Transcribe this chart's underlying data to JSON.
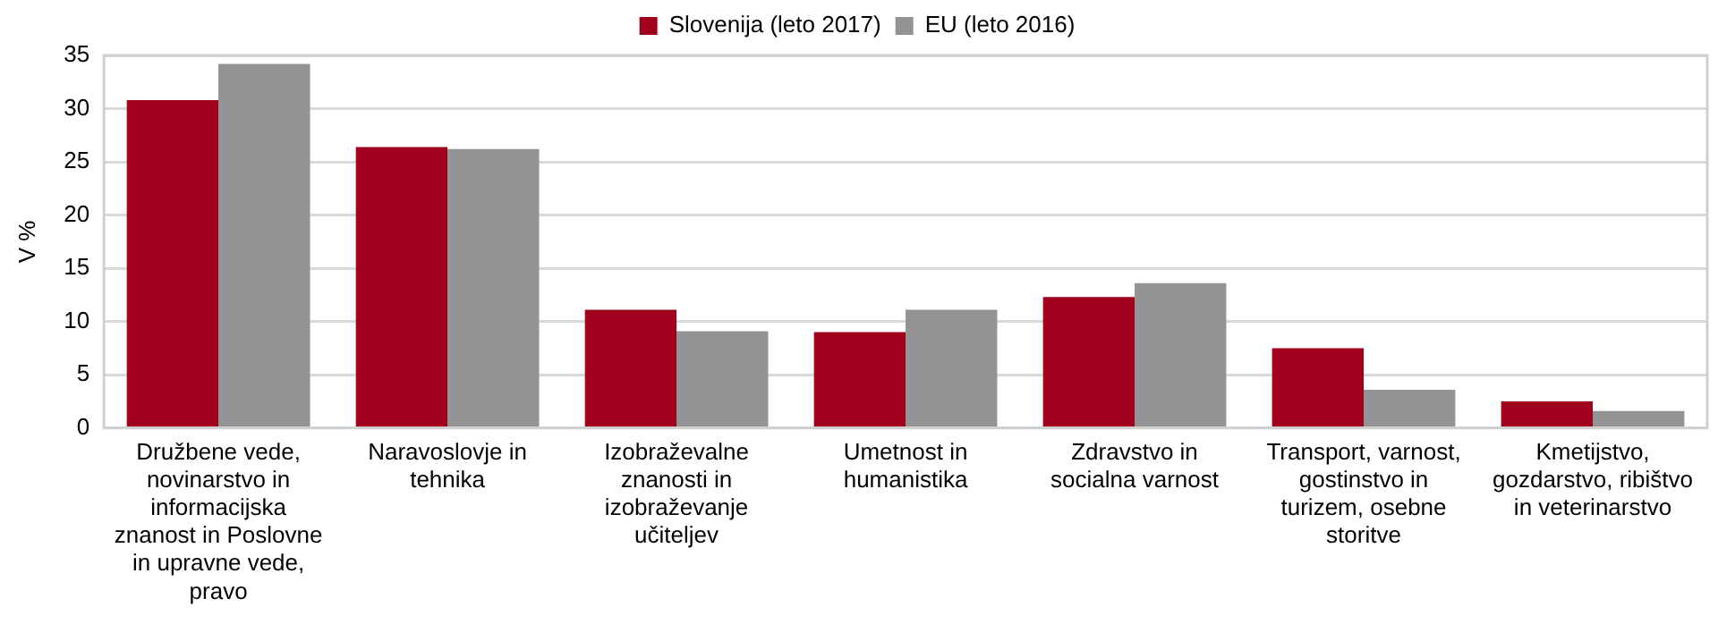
{
  "chart_data": {
    "type": "bar",
    "ylabel": "V %",
    "categories": [
      "Družbene vede, novinarstvo in informacijska znanost in Poslovne in upravne vede, pravo",
      "Naravoslovje in tehnika",
      "Izobraževalne znanosti in izobraževanje učiteljev",
      "Umetnost in humanistika",
      "Zdravstvo in socialna varnost",
      "Transport, varnost, gostinstvo in turizem, osebne storitve",
      "Kmetijstvo, gozdarstvo, ribištvo in veterinarstvo"
    ],
    "series": [
      {
        "name": "Slovenija (leto 2017)",
        "color": "#a0001e",
        "values": [
          30.8,
          26.4,
          11.1,
          9.0,
          12.3,
          7.5,
          2.5
        ]
      },
      {
        "name": "EU (leto 2016)",
        "color": "#939393",
        "values": [
          34.2,
          26.2,
          9.1,
          11.1,
          13.6,
          3.6,
          1.6
        ]
      }
    ],
    "ylim": [
      0,
      35
    ],
    "yticks": [
      0,
      5,
      10,
      15,
      20,
      25,
      30,
      35
    ],
    "grid": "y",
    "legend": "top"
  }
}
